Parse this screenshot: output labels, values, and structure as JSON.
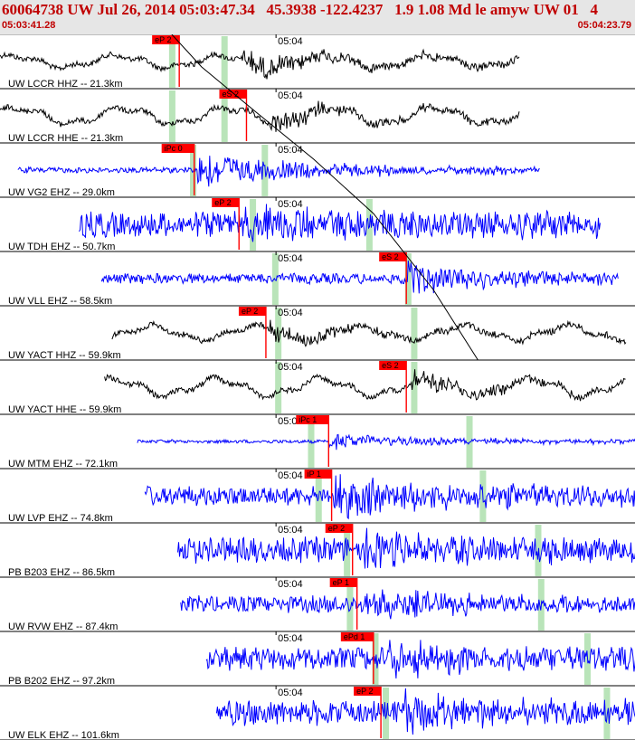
{
  "header": {
    "title": "60064738 UW Jul 26, 2014 05:03:47.34   45.3938 -122.4237   1.9 1.08 Md le amyw UW 01   4",
    "start_time": "05:03:41.28",
    "end_time": "05:04:23.79"
  },
  "colors": {
    "header_text": "#c00000",
    "header_bg": "#e6e6e6",
    "pick_box": "#ff0000",
    "pick_line": "#ff0000",
    "predicted_band": "#b9e4b9",
    "trace_broadband": "#000000",
    "trace_short_period": "#0000ff",
    "moveout_curve": "#000000"
  },
  "chart_data": {
    "type": "line",
    "x_unit": "time",
    "x_start": "05:03:41.28",
    "x_end": "05:04:23.79",
    "tick_label": "05:04",
    "tick_time": "05:04:00",
    "traces": [
      {
        "label": "UW LCCR HHZ -- 21.3km",
        "color": "black",
        "t_start": 0.0,
        "t_end": 34.8,
        "onset": 16.2,
        "pick": "eP 2",
        "pick_time": 12.0,
        "pred_p": 11.5,
        "pred_s": 15.0,
        "amp": 0.45,
        "noise": 0.22
      },
      {
        "label": "UW LCCR HHE -- 21.3km",
        "color": "black",
        "t_start": 0.0,
        "t_end": 34.8,
        "onset": 18.0,
        "pick": "eS 2",
        "pick_time": 16.5,
        "pred_p": 11.5,
        "pred_s": 15.0,
        "amp": 0.35,
        "noise": 0.3
      },
      {
        "label": "UW VG2 EHZ -- 29.0km",
        "color": "blue",
        "t_start": 1.2,
        "t_end": 36.2,
        "onset": 13.2,
        "pick": "iPc 0",
        "pick_time": 13.0,
        "pred_p": 12.9,
        "pred_s": 17.7,
        "amp": 0.7,
        "noise": 0.1
      },
      {
        "label": "UW TDH EHZ -- 50.7km",
        "color": "blue",
        "t_start": 5.3,
        "t_end": 40.2,
        "onset": 16.3,
        "pick": "eP 2",
        "pick_time": 16.0,
        "pred_p": 16.9,
        "pred_s": 24.7,
        "amp": 0.6,
        "noise": 0.45
      },
      {
        "label": "UW VLL EHZ -- 58.5km",
        "color": "blue",
        "t_start": 6.8,
        "t_end": 41.4,
        "onset": 27.2,
        "pick": "eS 2",
        "pick_time": 27.2,
        "pred_p": 18.4,
        "pred_s": 27.3,
        "amp": 0.6,
        "noise": 0.18
      },
      {
        "label": "UW YACT HHZ -- 59.9km",
        "color": "black",
        "t_start": 7.5,
        "t_end": 41.9,
        "onset": 18.0,
        "pick": "eP 2",
        "pick_time": 17.8,
        "pred_p": 18.6,
        "pred_s": 27.7,
        "amp": 0.3,
        "noise": 0.25
      },
      {
        "label": "UW YACT HHE -- 59.9km",
        "color": "black",
        "t_start": 7.0,
        "t_end": 41.9,
        "onset": 27.5,
        "pick": "eS 2",
        "pick_time": 27.2,
        "pred_p": 18.6,
        "pred_s": 27.7,
        "amp": 0.35,
        "noise": 0.3
      },
      {
        "label": "UW MTM EHZ -- 72.1km",
        "color": "blue",
        "t_start": 9.2,
        "t_end": 44.0,
        "onset": 22.0,
        "pick": "iPc 1",
        "pick_time": 22.0,
        "pred_p": 20.8,
        "pred_s": 31.4,
        "amp": 0.3,
        "noise": 0.06
      },
      {
        "label": "UW LVP EHZ -- 74.8km",
        "color": "blue",
        "t_start": 9.7,
        "t_end": 44.6,
        "onset": 22.3,
        "pick": "iP 1",
        "pick_time": 22.2,
        "pred_p": 21.3,
        "pred_s": 32.3,
        "amp": 0.75,
        "noise": 0.35
      },
      {
        "label": "PB B203 EHZ -- 86.5km",
        "color": "blue",
        "t_start": 11.9,
        "t_end": 46.7,
        "onset": 24.3,
        "pick": "eP 2",
        "pick_time": 23.6,
        "pred_p": 23.2,
        "pred_s": 36.0,
        "amp": 0.5,
        "noise": 0.45
      },
      {
        "label": "UW RVW EHZ -- 87.4km",
        "color": "blue",
        "t_start": 12.1,
        "t_end": 46.8,
        "onset": 24.5,
        "pick": "eP 1",
        "pick_time": 23.9,
        "pred_p": 23.4,
        "pred_s": 36.2,
        "amp": 0.5,
        "noise": 0.3
      },
      {
        "label": "PB B202 EHZ -- 97.2km",
        "color": "blue",
        "t_start": 13.8,
        "t_end": 48.5,
        "onset": 26.0,
        "pick": "ePd 1",
        "pick_time": 25.0,
        "pred_p": 25.1,
        "pred_s": 39.3,
        "amp": 0.5,
        "noise": 0.4
      },
      {
        "label": "UW ELK EHZ -- 101.6km",
        "color": "blue",
        "t_start": 14.5,
        "t_end": 49.0,
        "onset": 26.5,
        "pick": "eP 2",
        "pick_time": 25.5,
        "pred_p": 25.8,
        "pred_s": 40.6,
        "amp": 0.55,
        "noise": 0.45
      }
    ],
    "moveout_curves": [
      {
        "name": "",
        "points": [
          [
            11.5,
            0.0
          ],
          [
            13.5,
            0.6
          ],
          [
            17.0,
            1.4
          ],
          [
            21.0,
            2.3
          ],
          [
            25.0,
            3.3
          ],
          [
            29.0,
            4.7
          ],
          [
            32.0,
            6.0
          ]
        ]
      }
    ]
  }
}
